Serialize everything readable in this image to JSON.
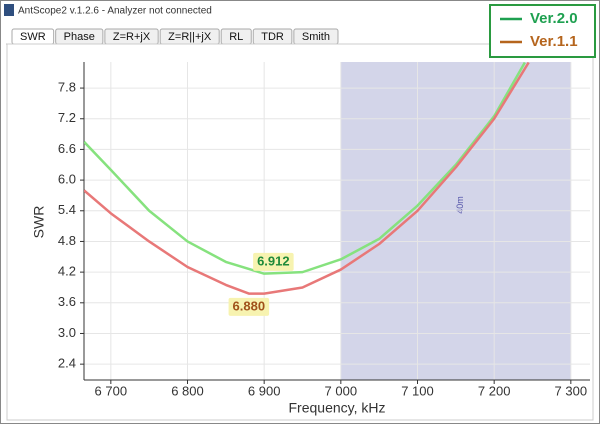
{
  "window": {
    "title": "AntScope2 v.1.2.6 - Analyzer not connected",
    "tabs": [
      "SWR",
      "Phase",
      "Z=R+jX",
      "Z=R||+jX",
      "RL",
      "TDR",
      "Smith"
    ]
  },
  "chart_data": {
    "type": "line",
    "xlabel": "Frequency, kHz",
    "ylabel": "SWR",
    "xlim": [
      6665,
      7325
    ],
    "ylim": [
      2.09,
      8.31
    ],
    "xticks": [
      {
        "value": 6700,
        "label": "6 700"
      },
      {
        "value": 6800,
        "label": "6 800"
      },
      {
        "value": 6900,
        "label": "6 900"
      },
      {
        "value": 7000,
        "label": "7 000"
      },
      {
        "value": 7100,
        "label": "7 100"
      },
      {
        "value": 7200,
        "label": "7 200"
      },
      {
        "value": 7300,
        "label": "7 300"
      }
    ],
    "yticks": [
      2.4,
      {
        "value": 3,
        "label": "3.0"
      },
      3.6,
      4.2,
      4.8,
      5.4,
      {
        "value": 6,
        "label": "6.0"
      },
      6.6,
      7.2,
      7.8
    ],
    "grid": true,
    "band": {
      "from": 7000,
      "to": 7300,
      "label": "40m",
      "color": "#d3d5e9"
    },
    "series": [
      {
        "name": "Ver.2.0",
        "color": "#86e27e",
        "legend_color": "#1ea050",
        "x": [
          6665,
          6700,
          6750,
          6800,
          6850,
          6900,
          6950,
          7000,
          7050,
          7100,
          7150,
          7200,
          7240
        ],
        "values": [
          6.75,
          6.2,
          5.4,
          4.8,
          4.4,
          4.17,
          4.2,
          4.45,
          4.85,
          5.5,
          6.3,
          7.25,
          8.3
        ]
      },
      {
        "name": "Ver.1.1",
        "color": "#e87878",
        "legend_color": "#b5651d",
        "x": [
          6665,
          6700,
          6750,
          6800,
          6850,
          6880,
          6900,
          6950,
          7000,
          7050,
          7100,
          7150,
          7200,
          7245
        ],
        "values": [
          5.8,
          5.35,
          4.8,
          4.3,
          3.95,
          3.78,
          3.78,
          3.9,
          4.25,
          4.75,
          5.4,
          6.25,
          7.2,
          8.3
        ]
      }
    ],
    "annotations": [
      {
        "text": "6.912",
        "x": 6912,
        "y": 4.4,
        "color": "#1e8a3a"
      },
      {
        "text": "6.880",
        "x": 6880,
        "y": 3.52,
        "color": "#a0521a"
      }
    ]
  }
}
